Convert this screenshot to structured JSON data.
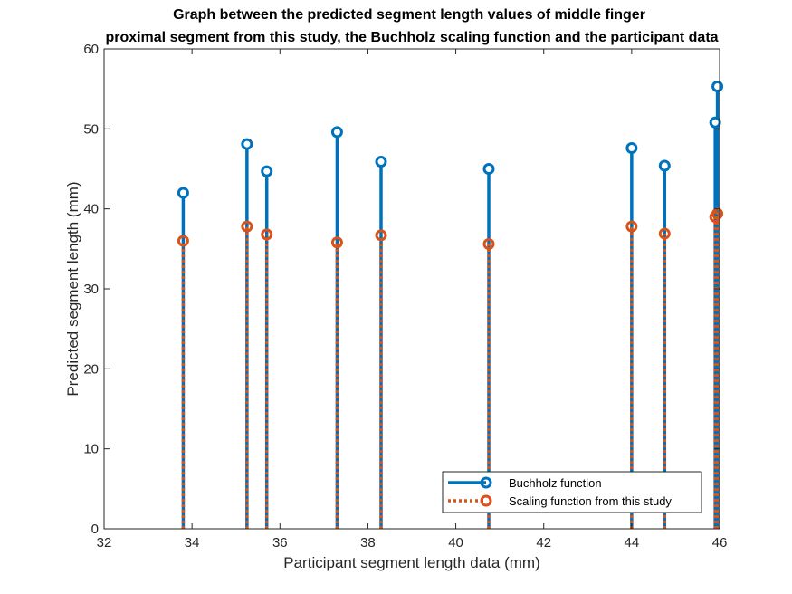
{
  "chart_data": {
    "type": "stem",
    "title": [
      "Graph between the predicted segment length values of middle finger",
      "proximal segment from this study, the Buchholz scaling function and the participant data"
    ],
    "xlabel": "Participant segment length data (mm)",
    "ylabel": "Predicted segment length (mm)",
    "xlim": [
      32,
      46
    ],
    "ylim": [
      0,
      60
    ],
    "xticks": [
      32,
      34,
      36,
      38,
      40,
      42,
      44,
      46
    ],
    "yticks": [
      0,
      10,
      20,
      30,
      40,
      50,
      60
    ],
    "grid": false,
    "legend_position": "bottom-right",
    "series": [
      {
        "name": "Buchholz function",
        "color": "#0072BD",
        "line_style": "solid",
        "x": [
          33.8,
          35.25,
          35.7,
          37.3,
          38.3,
          40.75,
          44.0,
          44.75,
          45.9,
          45.95
        ],
        "y": [
          42.0,
          48.1,
          44.7,
          49.6,
          45.9,
          45.0,
          47.6,
          45.4,
          50.8,
          55.3
        ]
      },
      {
        "name": "Scaling function from this study",
        "color": "#D95319",
        "line_style": "dotted",
        "x": [
          33.8,
          35.25,
          35.7,
          37.3,
          38.3,
          40.75,
          44.0,
          44.75,
          45.9,
          45.95
        ],
        "y": [
          36.0,
          37.8,
          36.8,
          35.8,
          36.7,
          35.6,
          37.8,
          36.9,
          39.0,
          39.4
        ]
      }
    ]
  }
}
